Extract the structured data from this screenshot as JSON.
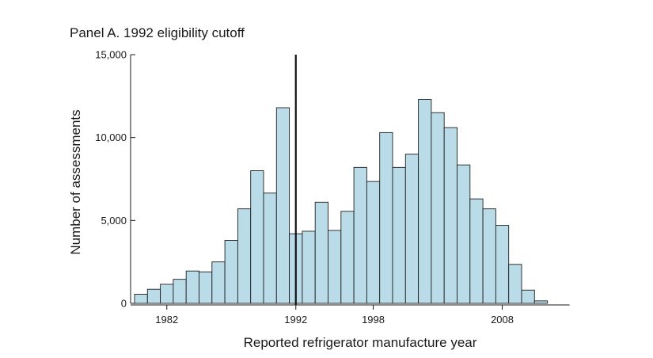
{
  "chart_data": {
    "type": "bar",
    "title": "Panel A. 1992 eligibility cutoff",
    "xlabel": "Reported refrigerator manufacture year",
    "ylabel": "Number of assessments",
    "categories": [
      1980,
      1981,
      1982,
      1983,
      1984,
      1985,
      1986,
      1987,
      1988,
      1989,
      1990,
      1991,
      1992,
      1993,
      1994,
      1995,
      1996,
      1997,
      1998,
      1999,
      2000,
      2001,
      2002,
      2003,
      2004,
      2005,
      2006,
      2007,
      2008,
      2009,
      2010,
      2011
    ],
    "values": [
      550,
      850,
      1150,
      1450,
      1950,
      1900,
      2500,
      3800,
      5700,
      8000,
      6650,
      11800,
      4200,
      4350,
      6100,
      4400,
      5550,
      8200,
      7350,
      10300,
      8200,
      9000,
      12300,
      11500,
      10600,
      8350,
      6300,
      5700,
      4700,
      2350,
      800,
      150
    ],
    "ylim": [
      0,
      15000
    ],
    "yticks": [
      0,
      5000,
      10000,
      15000
    ],
    "ytick_labels": [
      "0",
      "5,000",
      "10,000",
      "15,000"
    ],
    "xticks": [
      1982,
      1992,
      1998,
      2008
    ],
    "xtick_labels": [
      "1982",
      "1992",
      "1998",
      "2008"
    ],
    "cutoff_year": 1992,
    "bar_fill": "#b9dce8",
    "bar_stroke": "#1f1f1f"
  }
}
